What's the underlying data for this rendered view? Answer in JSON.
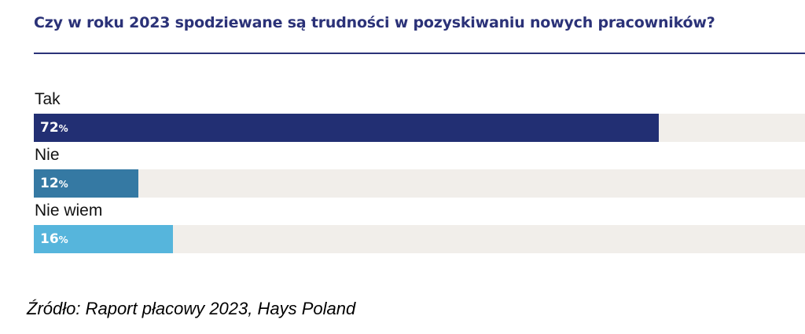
{
  "chart_data": {
    "type": "bar",
    "orientation": "horizontal",
    "title": "Czy w roku 2023 spodziewane są trudności w pozyskiwaniu nowych pracowników?",
    "categories": [
      "Tak",
      "Nie",
      "Nie wiem"
    ],
    "values": [
      72,
      12,
      16
    ],
    "unit": "%",
    "xlim": [
      0,
      100
    ],
    "grid": false,
    "legend": "none",
    "colors": [
      "#222f73",
      "#3579a3",
      "#56b5dc"
    ],
    "track_color": "#f1eeea"
  },
  "source": "Źródło: Raport płacowy 2023, Hays Poland"
}
